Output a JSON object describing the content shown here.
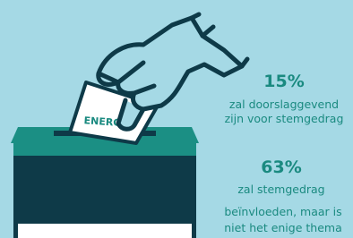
{
  "ballot_label": "ENERGIE",
  "stats": [
    {
      "value": "15%",
      "lines": [
        "zal doorslaggevend",
        "zijn voor stemgedrag"
      ]
    },
    {
      "value": "63%",
      "lines": [
        "zal stemgedrag",
        "beïnvloeden, maar is",
        "niet het enige thema"
      ]
    }
  ]
}
